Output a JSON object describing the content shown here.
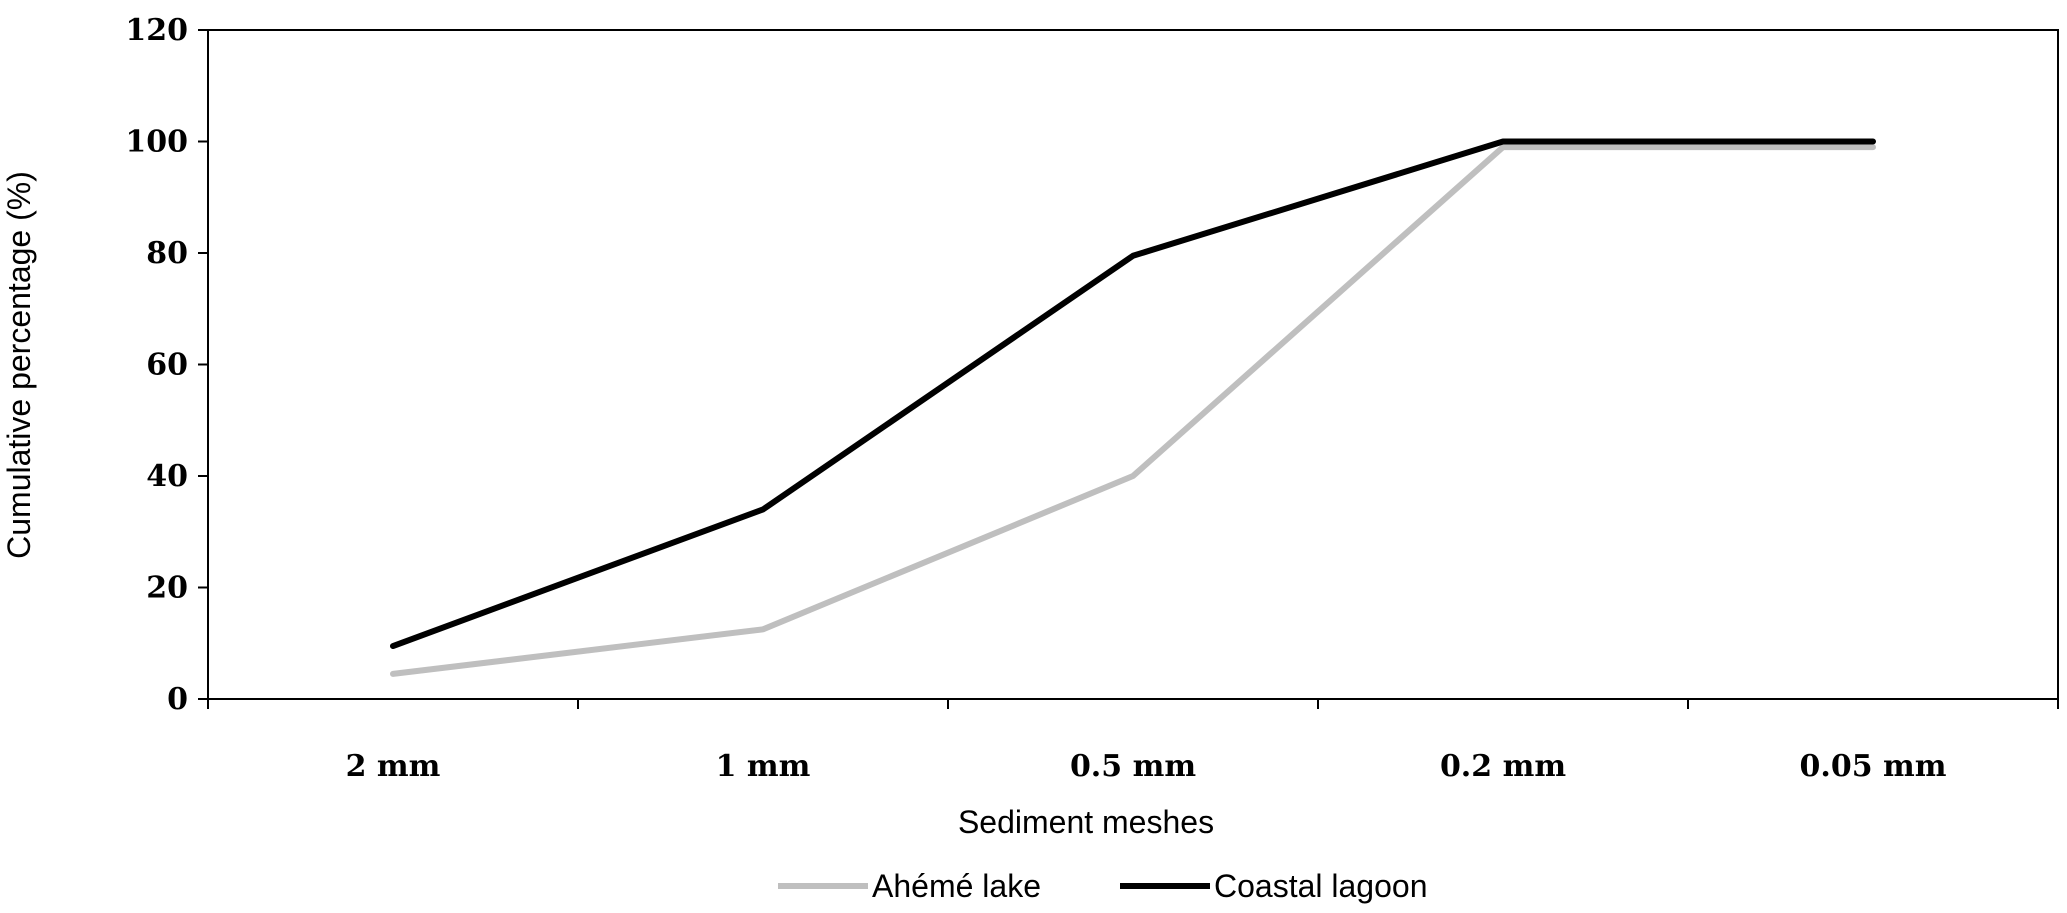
{
  "chart_data": {
    "type": "line",
    "categories": [
      "2 mm",
      "1 mm",
      "0.5 mm",
      "0.2 mm",
      "0.05 mm"
    ],
    "series": [
      {
        "name": "Ahémé lake",
        "color": "#bfbfbf",
        "values": [
          4.5,
          12.5,
          40,
          99,
          99
        ]
      },
      {
        "name": "Coastal lagoon",
        "color": "#000000",
        "values": [
          9.5,
          34,
          79.5,
          100,
          100
        ]
      }
    ],
    "title": "",
    "xlabel": "Sediment meshes",
    "ylabel": "Cumulative percentage (%)",
    "ylim": [
      0,
      120
    ],
    "yticks": [
      "0",
      "20",
      "40",
      "60",
      "80",
      "100",
      "120"
    ],
    "grid": false,
    "legend_position": "bottom-center"
  }
}
